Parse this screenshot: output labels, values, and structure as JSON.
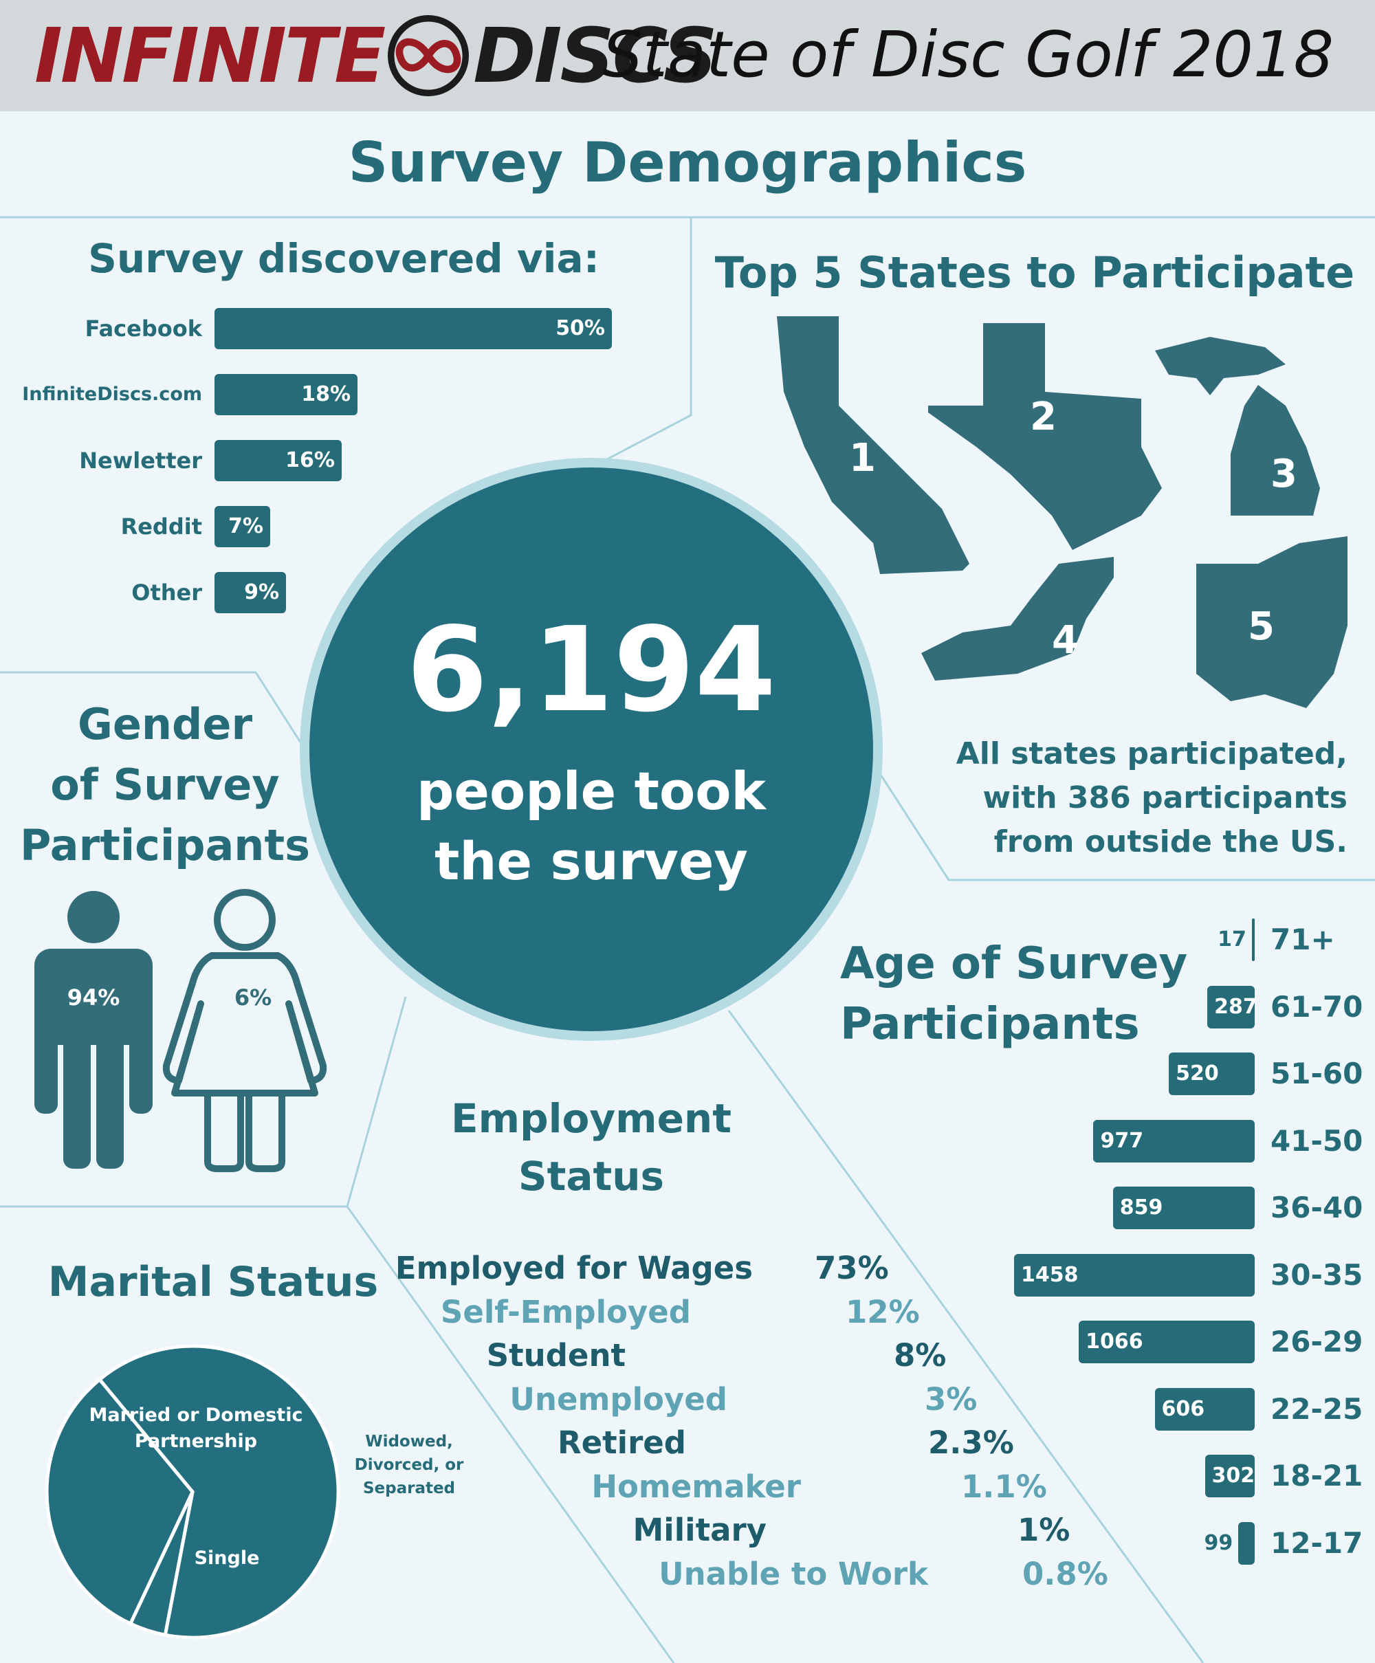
{
  "header": {
    "brand_left": "INFINITE",
    "brand_right": "DISCS",
    "brand_icon": "infinity-disc-logo-icon",
    "edition": "State of Disc Golf 2018"
  },
  "main_title": "Survey Demographics",
  "total": {
    "number": "6,194",
    "line1": "people took",
    "line2": "the survey"
  },
  "top_states": {
    "title": "Top 5 States to Participate",
    "states": [
      {
        "rank": "1",
        "icon": "california-shape-icon"
      },
      {
        "rank": "2",
        "icon": "texas-shape-icon"
      },
      {
        "rank": "3",
        "icon": "michigan-shape-icon"
      },
      {
        "rank": "4",
        "icon": "new-york-shape-icon"
      },
      {
        "rank": "5",
        "icon": "ohio-shape-icon"
      }
    ],
    "note_line1": "All states participated,",
    "note_line2": "with 386 participants",
    "note_line3": "from outside the US."
  },
  "gender": {
    "title_line1": "Gender",
    "title_line2": "of Survey",
    "title_line3": "Participants",
    "male_label": "94%",
    "female_label": "6%",
    "male_icon": "male-figure-icon",
    "female_icon": "female-figure-icon"
  },
  "employment": {
    "title_line1": "Employment",
    "title_line2": "Status",
    "rows": [
      {
        "label": "Employed for Wages",
        "value": "73%"
      },
      {
        "label": "Self-Employed",
        "value": "12%"
      },
      {
        "label": "Student",
        "value": "8%"
      },
      {
        "label": "Unemployed",
        "value": "3%"
      },
      {
        "label": "Retired",
        "value": "2.3%"
      },
      {
        "label": "Homemaker",
        "value": "1.1%"
      },
      {
        "label": "Military",
        "value": "1%"
      },
      {
        "label": "Unable to Work",
        "value": "0.8%"
      }
    ]
  },
  "colors": {
    "teal": "#256b78",
    "teal_dark": "#1f5c6b",
    "teal_light": "#5ea4b4",
    "brand_red": "#9b1b22",
    "background": "#eef6fa"
  },
  "chart_data": [
    {
      "type": "bar",
      "title": "Survey discovered via:",
      "orientation": "horizontal",
      "categories": [
        "Facebook",
        "InfiniteDiscs.com",
        "Newletter",
        "Reddit",
        "Other"
      ],
      "values": [
        50,
        18,
        16,
        7,
        9
      ],
      "value_labels": [
        "50%",
        "18%",
        "16%",
        "7%",
        "9%"
      ],
      "xlim": [
        0,
        50
      ]
    },
    {
      "type": "bar",
      "title": "Age of Survey Participants",
      "orientation": "horizontal",
      "categories": [
        "71+",
        "61-70",
        "51-60",
        "41-50",
        "36-40",
        "30-35",
        "26-29",
        "22-25",
        "18-21",
        "12-17"
      ],
      "values": [
        17,
        287,
        520,
        977,
        859,
        1458,
        1066,
        606,
        302,
        99
      ],
      "xlim": [
        0,
        1458
      ]
    },
    {
      "type": "pie",
      "title": "Marital Status",
      "categories": [
        "Married or Domestic Partnership",
        "Widowed, Divorced, or Separated",
        "Single"
      ],
      "values": [
        64,
        4,
        32
      ]
    }
  ]
}
